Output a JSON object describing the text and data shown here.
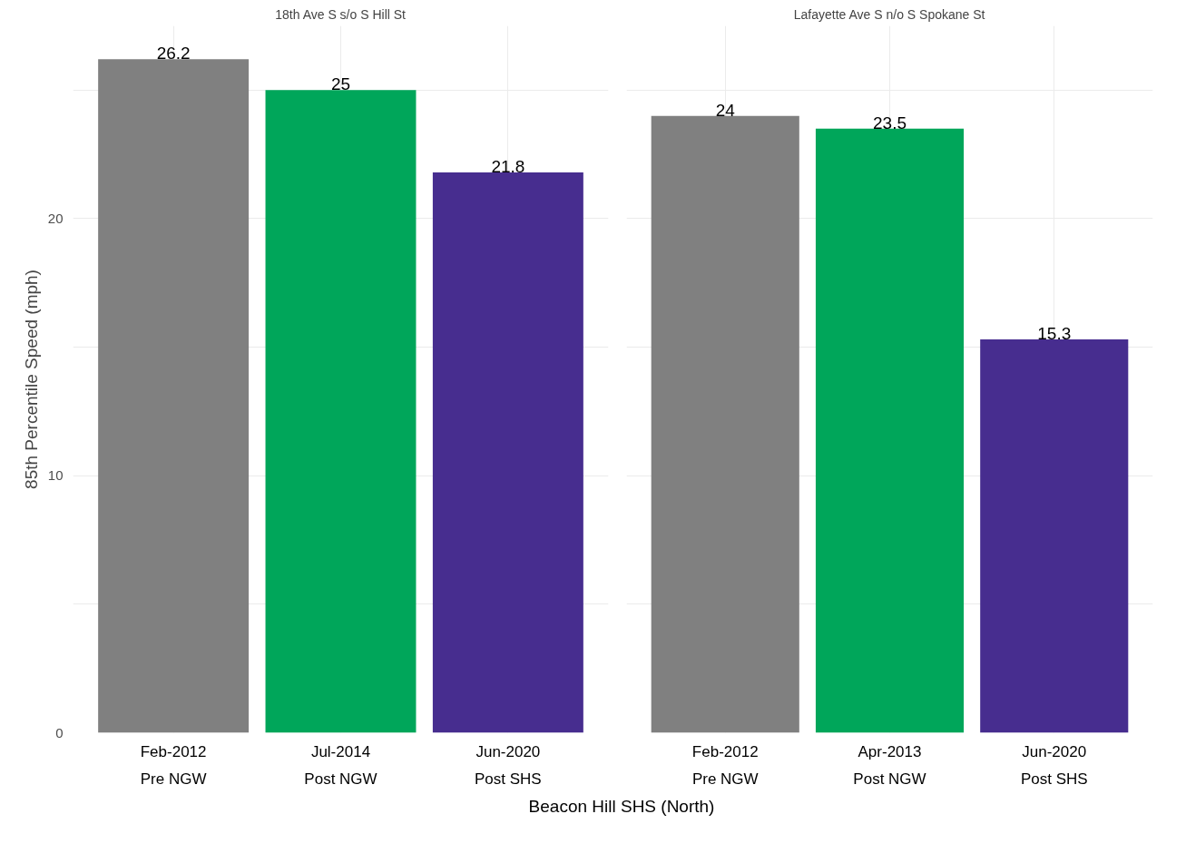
{
  "chart_data": [
    {
      "type": "bar",
      "title": "18th Ave S s/o S Hill St",
      "ylabel": "85th Percentile Speed (mph)",
      "xlabel": "Beacon Hill SHS (North)",
      "categories": [
        "Feb-2012\nPre NGW",
        "Jul-2014\nPost NGW",
        "Jun-2020\nPost SHS"
      ],
      "values": [
        26.2,
        25,
        21.8
      ],
      "colors": [
        "#808080",
        "#00a65a",
        "#472d8f"
      ],
      "ylim": [
        0,
        27.5
      ],
      "yticks": [
        0,
        {
          "value": 5,
          "label": null
        },
        10,
        {
          "value": 15,
          "label": null
        },
        20,
        {
          "value": 25,
          "label": null
        }
      ],
      "grid": true,
      "data_labels": true
    },
    {
      "type": "bar",
      "title": "Lafayette Ave S n/o S Spokane St",
      "categories": [
        "Feb-2012\nPre NGW",
        "Apr-2013\nPost NGW",
        "Jun-2020\nPost SHS"
      ],
      "values": [
        24,
        23.5,
        15.3
      ],
      "colors": [
        "#808080",
        "#00a65a",
        "#472d8f"
      ],
      "ylim": [
        0,
        27.5
      ],
      "yticks": [
        0,
        {
          "value": 5,
          "label": null
        },
        10,
        {
          "value": 15,
          "label": null
        },
        20,
        {
          "value": 25,
          "label": null
        }
      ],
      "grid": true,
      "data_labels": true,
      "tick_labels": "x"
    }
  ]
}
